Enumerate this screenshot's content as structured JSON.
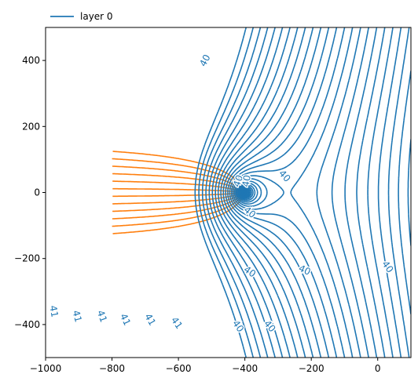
{
  "chart_data": {
    "type": "line",
    "title": "",
    "xlabel": "",
    "ylabel": "",
    "xlim": [
      -1000,
      100
    ],
    "ylim": [
      -500,
      500
    ],
    "xticks": [
      -1000,
      -800,
      -600,
      -400,
      -200,
      0
    ],
    "yticks": [
      -400,
      -200,
      0,
      200,
      400
    ],
    "xtick_labels": [
      "−1000",
      "−800",
      "−600",
      "−400",
      "−200",
      "0"
    ],
    "ytick_labels": [
      "−400",
      "−200",
      "0",
      "200",
      "400"
    ],
    "legend": {
      "placement": "above-left",
      "entries": [
        "layer 0"
      ]
    },
    "grid": false,
    "well": {
      "x": -400,
      "y": 0
    },
    "head_contour_color": "#1f77b4",
    "streamline_color": "#ff7f0e",
    "contour_labels": [
      {
        "text": "40",
        "x": -520,
        "y": 400,
        "angle": -62
      },
      {
        "text": "40",
        "x": -280,
        "y": 50,
        "angle": 48
      },
      {
        "text": "40",
        "x": -420,
        "y": 35,
        "angle": -70
      },
      {
        "text": "40",
        "x": -395,
        "y": 35,
        "angle": -80
      },
      {
        "text": "40",
        "x": -385,
        "y": -60,
        "angle": 40
      },
      {
        "text": "40",
        "x": -385,
        "y": -240,
        "angle": 35
      },
      {
        "text": "40",
        "x": -220,
        "y": -235,
        "angle": 25
      },
      {
        "text": "40",
        "x": 30,
        "y": -225,
        "angle": 55
      },
      {
        "text": "40",
        "x": -420,
        "y": -405,
        "angle": 55
      },
      {
        "text": "40",
        "x": -325,
        "y": -405,
        "angle": 50
      },
      {
        "text": "41",
        "x": -975,
        "y": -360,
        "angle": 80
      },
      {
        "text": "41",
        "x": -905,
        "y": -375,
        "angle": 75
      },
      {
        "text": "41",
        "x": -830,
        "y": -375,
        "angle": 70
      },
      {
        "text": "41",
        "x": -760,
        "y": -385,
        "angle": 65
      },
      {
        "text": "41",
        "x": -685,
        "y": -385,
        "angle": 60
      },
      {
        "text": "41",
        "x": -605,
        "y": -395,
        "angle": 55
      }
    ]
  }
}
